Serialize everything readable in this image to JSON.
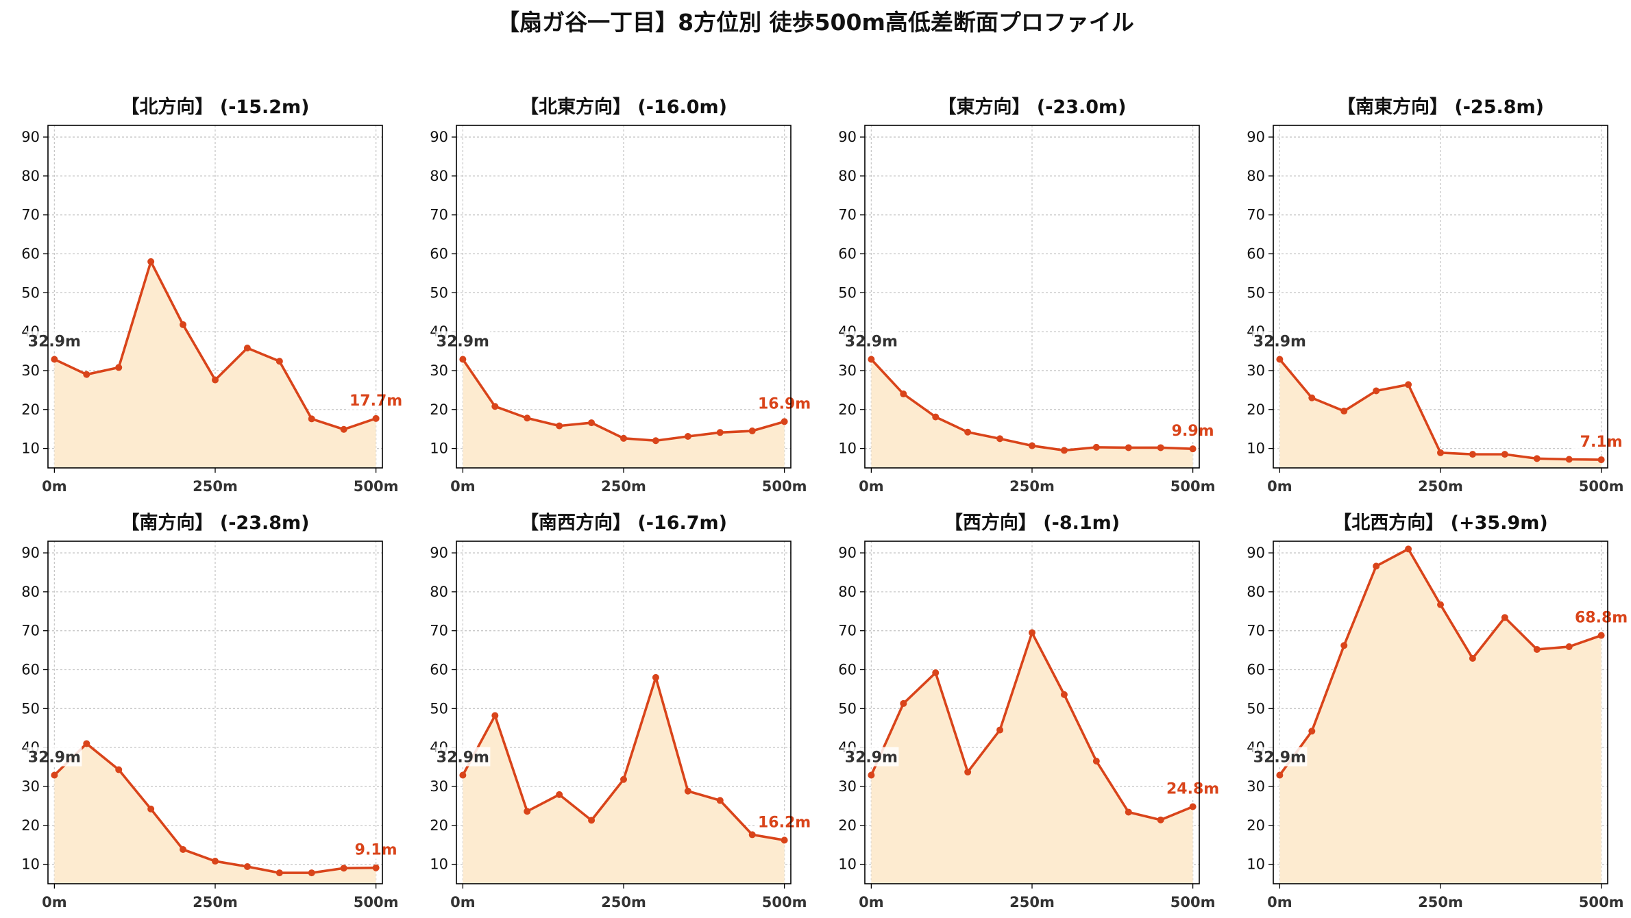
{
  "suptitle": "【扇ガ谷一丁目】8方位別 徒歩500m高低差断面プロファイル",
  "colors": {
    "line": "#d9441a",
    "fill": "#fdebd0",
    "start_label": "#333333",
    "end_label": "#d9441a",
    "grid": "#c8c8c8"
  },
  "chart_data": [
    {
      "type": "area",
      "title": "【北方向】 (-15.2m)",
      "x": [
        0,
        50,
        100,
        150,
        200,
        250,
        300,
        350,
        400,
        450,
        500
      ],
      "values": [
        32.9,
        29.0,
        30.8,
        58.0,
        41.8,
        27.6,
        35.8,
        32.4,
        17.6,
        14.9,
        17.7
      ],
      "start_label": "32.9m",
      "end_label": "17.7m",
      "xticks": [
        "0m",
        "250m",
        "500m"
      ],
      "yticks": [
        "10",
        "20",
        "30",
        "40",
        "50",
        "60",
        "70",
        "80",
        "90"
      ],
      "ylim": [
        5,
        93
      ],
      "xlim": [
        -10,
        510
      ],
      "grid": true
    },
    {
      "type": "area",
      "title": "【北東方向】 (-16.0m)",
      "x": [
        0,
        50,
        100,
        150,
        200,
        250,
        300,
        350,
        400,
        450,
        500
      ],
      "values": [
        32.9,
        20.8,
        17.8,
        15.8,
        16.6,
        12.6,
        12.0,
        13.1,
        14.1,
        14.5,
        16.9
      ],
      "start_label": "32.9m",
      "end_label": "16.9m",
      "xticks": [
        "0m",
        "250m",
        "500m"
      ],
      "yticks": [
        "10",
        "20",
        "30",
        "40",
        "50",
        "60",
        "70",
        "80",
        "90"
      ],
      "ylim": [
        5,
        93
      ],
      "xlim": [
        -10,
        510
      ],
      "grid": true
    },
    {
      "type": "area",
      "title": "【東方向】 (-23.0m)",
      "x": [
        0,
        50,
        100,
        150,
        200,
        250,
        300,
        350,
        400,
        450,
        500
      ],
      "values": [
        32.9,
        24.0,
        18.1,
        14.2,
        12.5,
        10.7,
        9.5,
        10.3,
        10.2,
        10.2,
        9.9
      ],
      "start_label": "32.9m",
      "end_label": "9.9m",
      "xticks": [
        "0m",
        "250m",
        "500m"
      ],
      "yticks": [
        "10",
        "20",
        "30",
        "40",
        "50",
        "60",
        "70",
        "80",
        "90"
      ],
      "ylim": [
        5,
        93
      ],
      "xlim": [
        -10,
        510
      ],
      "grid": true
    },
    {
      "type": "area",
      "title": "【南東方向】 (-25.8m)",
      "x": [
        0,
        50,
        100,
        150,
        200,
        250,
        300,
        350,
        400,
        450,
        500
      ],
      "values": [
        32.9,
        23.0,
        19.6,
        24.8,
        26.4,
        8.9,
        8.5,
        8.5,
        7.4,
        7.2,
        7.1
      ],
      "start_label": "32.9m",
      "end_label": "7.1m",
      "xticks": [
        "0m",
        "250m",
        "500m"
      ],
      "yticks": [
        "10",
        "20",
        "30",
        "40",
        "50",
        "60",
        "70",
        "80",
        "90"
      ],
      "ylim": [
        5,
        93
      ],
      "xlim": [
        -10,
        510
      ],
      "grid": true
    },
    {
      "type": "area",
      "title": "【南方向】 (-23.8m)",
      "x": [
        0,
        50,
        100,
        150,
        200,
        250,
        300,
        350,
        400,
        450,
        500
      ],
      "values": [
        32.9,
        41.0,
        34.3,
        24.2,
        13.8,
        10.8,
        9.4,
        7.8,
        7.8,
        9.0,
        9.1
      ],
      "start_label": "32.9m",
      "end_label": "9.1m",
      "xticks": [
        "0m",
        "250m",
        "500m"
      ],
      "yticks": [
        "10",
        "20",
        "30",
        "40",
        "50",
        "60",
        "70",
        "80",
        "90"
      ],
      "ylim": [
        5,
        93
      ],
      "xlim": [
        -10,
        510
      ],
      "grid": true
    },
    {
      "type": "area",
      "title": "【南西方向】 (-16.7m)",
      "x": [
        0,
        50,
        100,
        150,
        200,
        250,
        300,
        350,
        400,
        450,
        500
      ],
      "values": [
        32.9,
        48.2,
        23.6,
        27.9,
        21.3,
        31.8,
        58.0,
        28.8,
        26.4,
        17.6,
        16.2
      ],
      "start_label": "32.9m",
      "end_label": "16.2m",
      "xticks": [
        "0m",
        "250m",
        "500m"
      ],
      "yticks": [
        "10",
        "20",
        "30",
        "40",
        "50",
        "60",
        "70",
        "80",
        "90"
      ],
      "ylim": [
        5,
        93
      ],
      "xlim": [
        -10,
        510
      ],
      "grid": true
    },
    {
      "type": "area",
      "title": "【西方向】 (-8.1m)",
      "x": [
        0,
        50,
        100,
        150,
        200,
        250,
        300,
        350,
        400,
        450,
        500
      ],
      "values": [
        32.9,
        51.3,
        59.2,
        33.7,
        44.5,
        69.5,
        53.6,
        36.5,
        23.4,
        21.4,
        24.8
      ],
      "start_label": "32.9m",
      "end_label": "24.8m",
      "xticks": [
        "0m",
        "250m",
        "500m"
      ],
      "yticks": [
        "10",
        "20",
        "30",
        "40",
        "50",
        "60",
        "70",
        "80",
        "90"
      ],
      "ylim": [
        5,
        93
      ],
      "xlim": [
        -10,
        510
      ],
      "grid": true
    },
    {
      "type": "area",
      "title": "【北西方向】 (+35.9m)",
      "x": [
        0,
        50,
        100,
        150,
        200,
        250,
        300,
        350,
        400,
        450,
        500
      ],
      "values": [
        32.9,
        44.2,
        66.2,
        86.6,
        91.0,
        76.7,
        62.9,
        73.4,
        65.2,
        65.9,
        68.8
      ],
      "start_label": "32.9m",
      "end_label": "68.8m",
      "xticks": [
        "0m",
        "250m",
        "500m"
      ],
      "yticks": [
        "10",
        "20",
        "30",
        "40",
        "50",
        "60",
        "70",
        "80",
        "90"
      ],
      "ylim": [
        5,
        93
      ],
      "xlim": [
        -10,
        510
      ],
      "grid": true
    }
  ]
}
